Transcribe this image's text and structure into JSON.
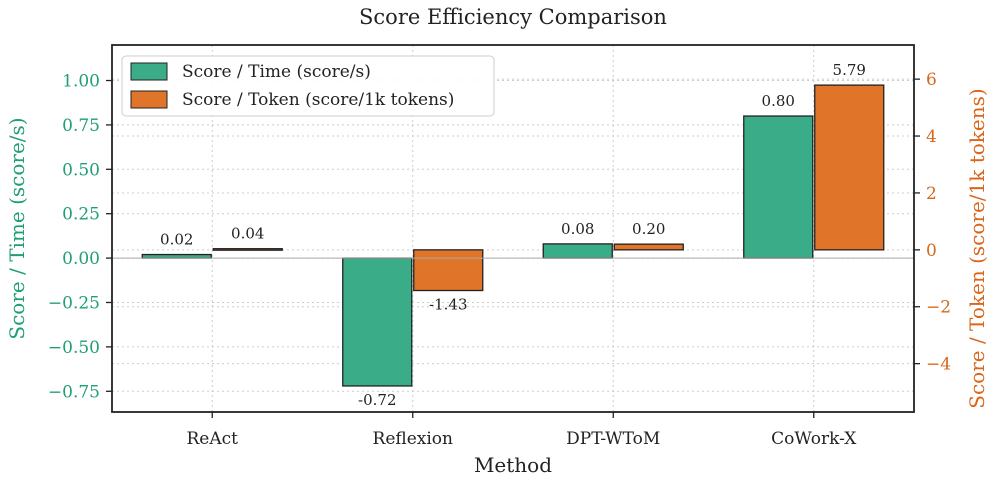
{
  "chart_data": {
    "type": "bar",
    "title": "Score Efficiency Comparison",
    "xlabel": "Method",
    "categories": [
      "ReAct",
      "Reflexion",
      "DPT-WToM",
      "CoWork-X"
    ],
    "series": [
      {
        "name": "Score / Time (score/s)",
        "axis": "left",
        "color": "#3aad88",
        "values": [
          0.02,
          -0.72,
          0.08,
          0.8
        ],
        "labels": [
          "0.02",
          "-0.72",
          "0.08",
          "0.80"
        ]
      },
      {
        "name": "Score / Token (score/1k tokens)",
        "axis": "right",
        "color": "#e07428",
        "values": [
          0.04,
          -1.43,
          0.2,
          5.79
        ],
        "labels": [
          "0.04",
          "-1.43",
          "0.20",
          "5.79"
        ]
      }
    ],
    "y_left": {
      "label": "Score / Time (score/s)",
      "color": "#1f9e78",
      "ylim": [
        -0.8667,
        1.2
      ],
      "ticks": [
        1.0,
        0.75,
        0.5,
        0.25,
        0.0,
        -0.25,
        -0.5,
        -0.75
      ],
      "tick_labels": [
        "1.00",
        "0.75",
        "0.50",
        "0.25",
        "0.00",
        "−0.25",
        "−0.50",
        "−0.75"
      ]
    },
    "y_right": {
      "label": "Score / Token (score/1k tokens)",
      "color": "#d9661a",
      "ylim": [
        -5.7,
        7.2
      ],
      "ticks": [
        6,
        4,
        2,
        0,
        -2,
        -4
      ],
      "tick_labels": [
        "6",
        "4",
        "2",
        "0",
        "−2",
        "−4"
      ]
    },
    "grid": true,
    "legend_position": "upper-left"
  }
}
